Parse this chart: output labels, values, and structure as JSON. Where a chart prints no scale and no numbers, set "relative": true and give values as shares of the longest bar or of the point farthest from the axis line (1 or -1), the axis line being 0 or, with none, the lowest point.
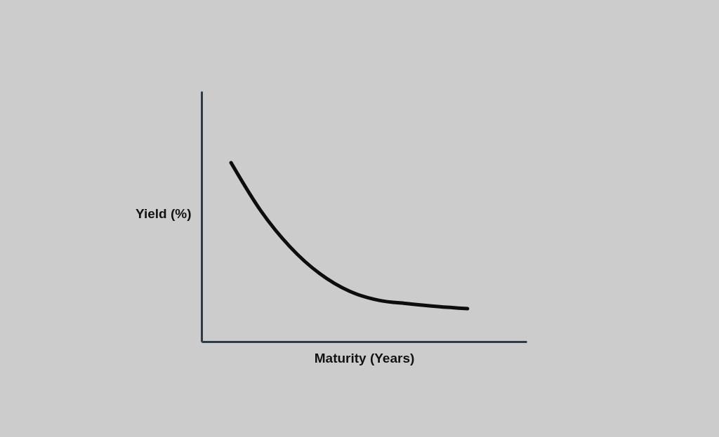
{
  "chart_data": {
    "type": "line",
    "relative": true,
    "xlabel": "Maturity (Years)",
    "ylabel": "Yield (%)",
    "categories": [
      null,
      null,
      null,
      null,
      null,
      null,
      null,
      null,
      null
    ],
    "series": [
      {
        "color": "#0d0d0d",
        "values": [
          1.0,
          0.733,
          0.529,
          0.38,
          0.282,
          0.231,
          0.212,
          0.196,
          0.184
        ]
      }
    ],
    "tick_labels": false,
    "grid": false,
    "marker": "none",
    "line_style": "solid"
  }
}
